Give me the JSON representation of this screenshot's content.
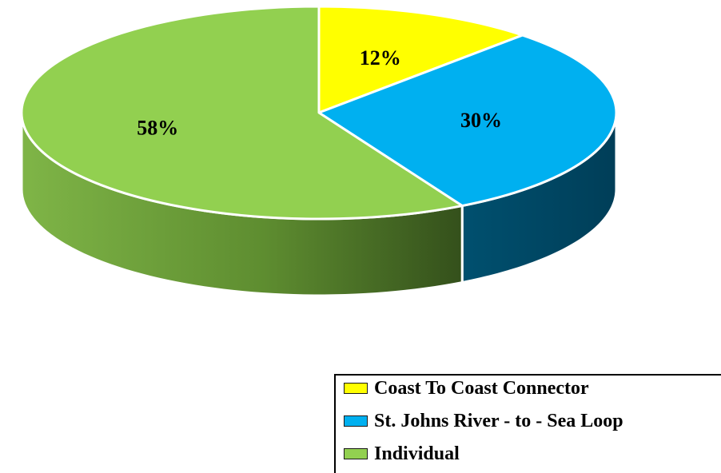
{
  "chart_data": {
    "type": "pie",
    "style": "3d",
    "categories": [
      "Coast To Coast Connector",
      "St. Johns River - to - Sea Loop",
      "Individual"
    ],
    "values": [
      12,
      30,
      58
    ],
    "value_labels": [
      "12%",
      "30%",
      "58%"
    ],
    "colors": [
      "#FFFF00",
      "#00B0F0",
      "#92D050"
    ],
    "side_colors": [
      "#8C8C00",
      "#004A66",
      "#5B8A2E"
    ],
    "legend_position": "bottom-right",
    "title": ""
  }
}
